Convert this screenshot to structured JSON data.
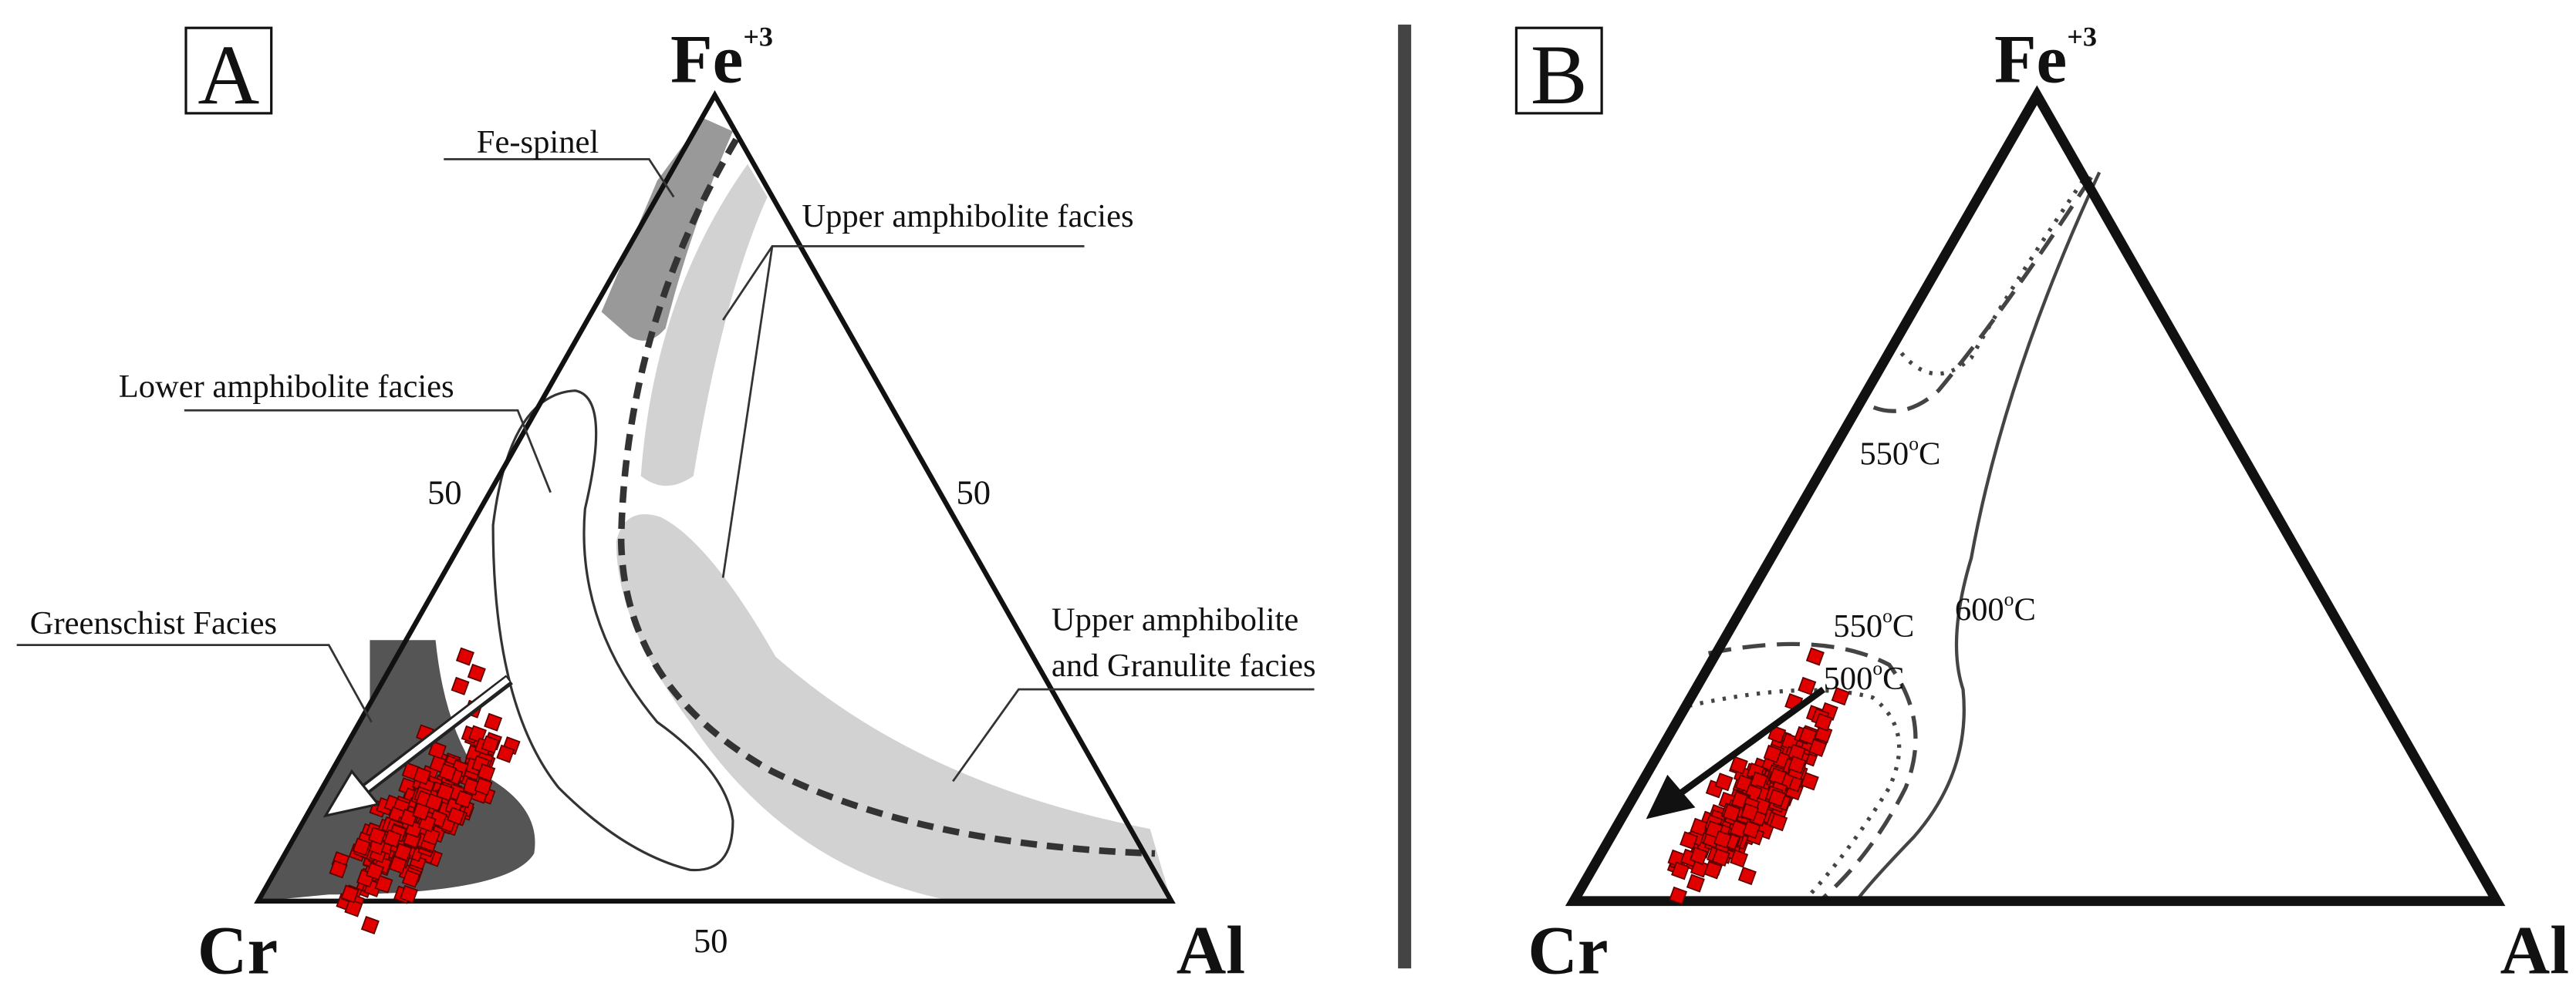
{
  "panels": [
    {
      "letter": "A",
      "apex": {
        "top": "Fe",
        "top_sup": "+3",
        "left": "Cr",
        "right": "Al"
      },
      "edge_ticks": [
        "50",
        "50",
        "50"
      ],
      "labels": [
        "Fe-spinel",
        "Upper amphibolite facies",
        "Lower amphibolite facies",
        "Greenschist Facies",
        "Upper amphibolite",
        "and Granulite facies"
      ]
    },
    {
      "letter": "B",
      "apex": {
        "top": "Fe",
        "top_sup": "+3",
        "left": "Cr",
        "right": "Al"
      },
      "isotherms": [
        {
          "value": "550",
          "sup": "o",
          "unit": "C"
        },
        {
          "value": "550",
          "sup": "o",
          "unit": "C"
        },
        {
          "value": "500",
          "sup": "o",
          "unit": "C"
        },
        {
          "value": "600",
          "sup": "o",
          "unit": "C"
        }
      ]
    }
  ]
}
